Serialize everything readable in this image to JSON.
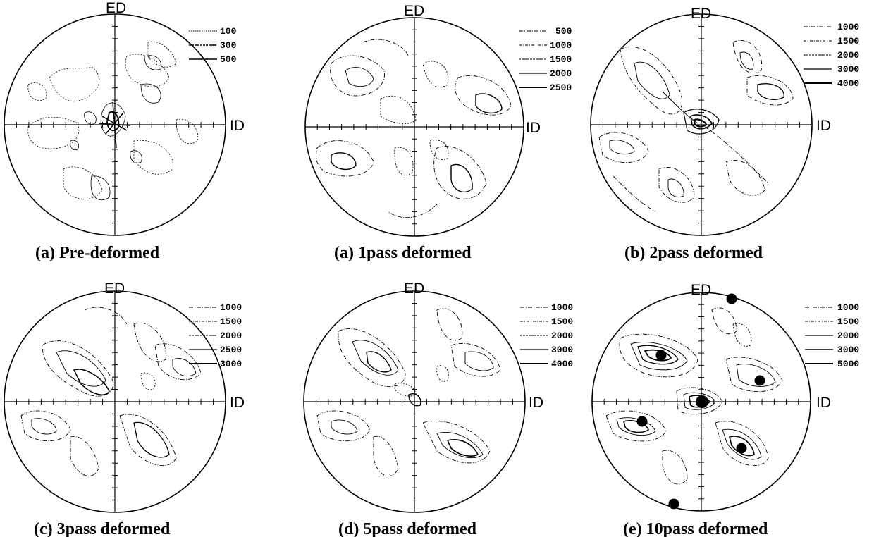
{
  "figure": {
    "panels": [
      {
        "id": "pre",
        "caption": "(a) Pre-deformed",
        "top_label": "ED",
        "right_label": "ID",
        "legend": [
          "100",
          "300",
          "500"
        ],
        "marker_count": 0
      },
      {
        "id": "p1",
        "caption": "(a) 1pass deformed",
        "top_label": "ED",
        "right_label": "ID",
        "legend": [
          "500",
          "1000",
          "1500",
          "2000",
          "2500"
        ],
        "marker_count": 0
      },
      {
        "id": "p2",
        "caption": "(b) 2pass deformed",
        "top_label": "ED",
        "right_label": "ID",
        "legend": [
          "1000",
          "1500",
          "2000",
          "3000",
          "4000"
        ],
        "marker_count": 0
      },
      {
        "id": "p3",
        "caption": "(c) 3pass deformed",
        "top_label": "ED",
        "right_label": "ID",
        "legend": [
          "1000",
          "1500",
          "2000",
          "2500",
          "3000"
        ],
        "marker_count": 0
      },
      {
        "id": "p5",
        "caption": "(d) 5pass deformed",
        "top_label": "ED",
        "right_label": "ID",
        "legend": [
          "1000",
          "1500",
          "2000",
          "3000",
          "4000"
        ],
        "marker_count": 0
      },
      {
        "id": "p10",
        "caption": "(e) 10pass deformed",
        "top_label": "ED",
        "right_label": "ID",
        "legend": [
          "1000",
          "1500",
          "2000",
          "3000",
          "5000"
        ],
        "marker_count": 7
      }
    ]
  }
}
